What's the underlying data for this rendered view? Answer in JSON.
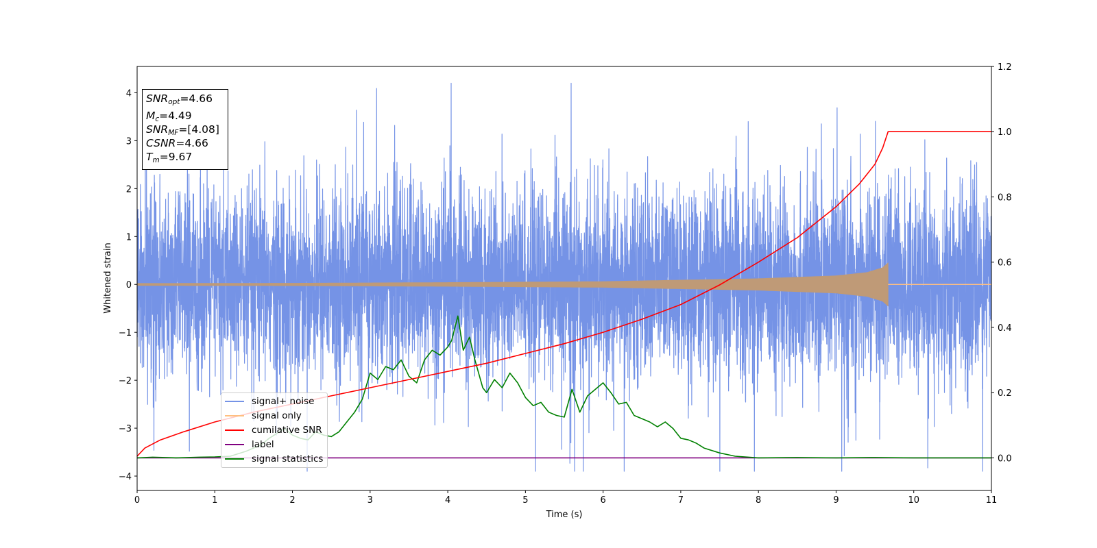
{
  "chart_data": {
    "type": "line",
    "xlabel": "Time (s)",
    "ylabel": "Whitened strain",
    "xlim": [
      0,
      11
    ],
    "ylim_left": [
      -4.3,
      4.55
    ],
    "ylim_right": [
      -0.1,
      1.2
    ],
    "x_ticks": [
      "0",
      "1",
      "2",
      "3",
      "4",
      "5",
      "6",
      "7",
      "8",
      "9",
      "10",
      "11"
    ],
    "y_ticks_left": [
      "−4",
      "−3",
      "−2",
      "−1",
      "0",
      "1",
      "2",
      "3",
      "4"
    ],
    "y_ticks_right": [
      "0.0",
      "0.2",
      "0.4",
      "0.6",
      "0.8",
      "1.0",
      "1.2"
    ],
    "annotations": {
      "snr_opt_name": "SNR",
      "snr_opt_sub": "opt",
      "snr_opt_value": "=4.66",
      "mc_name": "M",
      "mc_sub": "c",
      "mc_value": "=4.49",
      "snr_mf_name": "SNR",
      "snr_mf_sub": "MF",
      "snr_mf_value": "=[4.08]",
      "csnr_name": "CSNR",
      "csnr_value": "=4.66",
      "tm_name": "T",
      "tm_sub": "m",
      "tm_value": "=9.67"
    },
    "legend": {
      "placement": "lower-left",
      "entries": [
        {
          "label": "signal+ noise",
          "color": "#7593e6"
        },
        {
          "label": "signal only",
          "color": "#ffbf80"
        },
        {
          "label": "cumilative SNR",
          "color": "#ff0000"
        },
        {
          "label": "label",
          "color": "#800080"
        },
        {
          "label": "signal statistics",
          "color": "#008000"
        }
      ]
    },
    "series": [
      {
        "name": "signal+ noise",
        "axis": "left",
        "color": "#7593e6",
        "description": "whitened noise, approx. sigma 1, spikes up to about 4.2 and down to about -3.9 over 0-11 s"
      },
      {
        "name": "signal only",
        "axis": "left",
        "color": "#bf9a77",
        "description": "chirp envelope growing from 0.02 at t=0 to about 0.45 at t=9.67, then 0",
        "envelope": {
          "x": [
            0,
            2,
            4,
            6,
            8,
            9,
            9.4,
            9.6,
            9.67
          ],
          "y": [
            0.02,
            0.025,
            0.04,
            0.06,
            0.12,
            0.18,
            0.25,
            0.35,
            0.45
          ]
        }
      },
      {
        "name": "cumilative SNR",
        "axis": "right",
        "color": "#ff0000",
        "x": [
          0,
          0.1,
          0.3,
          0.6,
          1.0,
          1.5,
          2.0,
          2.5,
          3.0,
          3.5,
          4.0,
          4.5,
          5.0,
          5.5,
          6.0,
          6.5,
          7.0,
          7.5,
          8.0,
          8.5,
          9.0,
          9.3,
          9.5,
          9.6,
          9.67,
          11
        ],
        "y": [
          0.005,
          0.03,
          0.055,
          0.08,
          0.11,
          0.14,
          0.165,
          0.19,
          0.215,
          0.24,
          0.265,
          0.29,
          0.32,
          0.35,
          0.385,
          0.425,
          0.47,
          0.53,
          0.6,
          0.675,
          0.77,
          0.84,
          0.9,
          0.95,
          1.0,
          1.0
        ]
      },
      {
        "name": "label",
        "axis": "right",
        "color": "#800080",
        "x": [
          0,
          11
        ],
        "y": [
          0,
          0
        ]
      },
      {
        "name": "signal statistics",
        "axis": "right",
        "color": "#008000",
        "x": [
          0,
          0.2,
          0.5,
          0.8,
          1.0,
          1.2,
          1.4,
          1.6,
          1.7,
          1.8,
          1.9,
          2.0,
          2.1,
          2.2,
          2.3,
          2.4,
          2.5,
          2.6,
          2.7,
          2.8,
          2.9,
          3.0,
          3.1,
          3.2,
          3.3,
          3.4,
          3.5,
          3.6,
          3.7,
          3.8,
          3.9,
          4.0,
          4.05,
          4.13,
          4.2,
          4.28,
          4.35,
          4.45,
          4.5,
          4.6,
          4.7,
          4.8,
          4.9,
          5.0,
          5.1,
          5.2,
          5.3,
          5.4,
          5.5,
          5.6,
          5.7,
          5.8,
          5.9,
          6.0,
          6.1,
          6.2,
          6.3,
          6.4,
          6.5,
          6.6,
          6.7,
          6.8,
          6.9,
          7.0,
          7.1,
          7.2,
          7.3,
          7.5,
          7.7,
          8.0,
          8.5,
          9.0,
          9.5,
          10.0,
          10.5,
          11.0
        ],
        "y": [
          0.0,
          0.002,
          0.0,
          0.002,
          0.003,
          0.005,
          0.02,
          0.04,
          0.06,
          0.075,
          0.09,
          0.07,
          0.06,
          0.055,
          0.08,
          0.07,
          0.065,
          0.08,
          0.11,
          0.14,
          0.18,
          0.26,
          0.24,
          0.28,
          0.27,
          0.3,
          0.25,
          0.23,
          0.3,
          0.33,
          0.315,
          0.34,
          0.36,
          0.435,
          0.33,
          0.37,
          0.3,
          0.215,
          0.2,
          0.24,
          0.215,
          0.26,
          0.23,
          0.185,
          0.16,
          0.17,
          0.14,
          0.13,
          0.125,
          0.21,
          0.14,
          0.19,
          0.21,
          0.23,
          0.2,
          0.165,
          0.17,
          0.13,
          0.12,
          0.11,
          0.095,
          0.11,
          0.09,
          0.06,
          0.055,
          0.045,
          0.03,
          0.015,
          0.005,
          0.0,
          0.001,
          0.0,
          0.001,
          0.0,
          0.0,
          0.0
        ]
      }
    ]
  }
}
